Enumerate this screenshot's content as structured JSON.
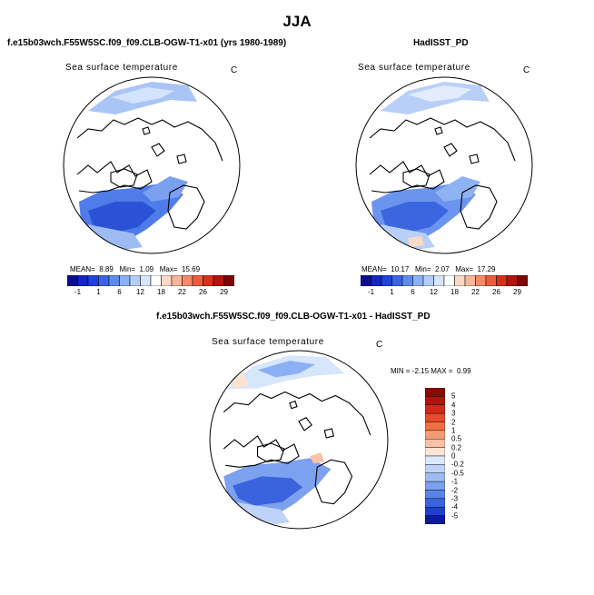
{
  "figure": {
    "title": "JJA",
    "panels": [
      {
        "title": "f.e15b03wch.F55W5SC.f09_f09.CLB-OGW-T1-x01 (yrs 1980-1989)",
        "variable": "Sea surface temperature",
        "unit": "C",
        "stats": {
          "mean_label": "MEAN=",
          "mean": "8.89",
          "min_label": "Min=",
          "min": "1.09",
          "max_label": "Max=",
          "max": "15.69"
        }
      },
      {
        "title": "HadISST_PD",
        "variable": "Sea surface temperature",
        "unit": "C",
        "stats": {
          "mean_label": "MEAN=",
          "mean": "10.17",
          "min_label": "Min=",
          "min": "2.07",
          "max_label": "Max=",
          "max": "17.29"
        }
      },
      {
        "title": "f.e15b03wch.F55W5SC.f09_f09.CLB-OGW-T1-x01 - HadISST_PD",
        "variable": "Sea surface temperature",
        "unit": "C",
        "stats": {
          "min_label": "MIN =",
          "min": "-2.15",
          "max_label": "MAX =",
          "max": "0.99"
        }
      }
    ],
    "abs_colorbar": {
      "labels": [
        "-1",
        "1",
        "6",
        "12",
        "18",
        "22",
        "26",
        "29"
      ],
      "colors": [
        "#0b0f8f",
        "#1524c4",
        "#2041db",
        "#3b64e6",
        "#5f8bef",
        "#8bb0f6",
        "#b3cdf9",
        "#d6e6fb",
        "#ffffff",
        "#fbd9c6",
        "#f8b59a",
        "#f4896a",
        "#ee5a3f",
        "#db2f1e",
        "#b3140e",
        "#7c0606"
      ]
    },
    "diff_colorbar": {
      "labels": [
        "5",
        "4",
        "3",
        "2",
        "1",
        "0.5",
        "0.2",
        "0",
        "-0.2",
        "-0.5",
        "-1",
        "-2",
        "-3",
        "-4",
        "-5"
      ],
      "colors": [
        "#8a0a05",
        "#b3130d",
        "#d12a1a",
        "#e84a2c",
        "#f2703f",
        "#f59a74",
        "#fac2a8",
        "#fde3d4",
        "#dce8fb",
        "#bfd3f8",
        "#9ebbf4",
        "#7ca1ef",
        "#5a83e8",
        "#3a63de",
        "#1f40cc",
        "#0c1a9b"
      ]
    },
    "chart_data": {
      "type": "heatmap",
      "projection": "north polar stereographic",
      "season": "JJA",
      "variable": "Sea surface temperature (C)",
      "abs_levels": [
        -1,
        1,
        6,
        12,
        18,
        22,
        26,
        29
      ],
      "diff_levels": [
        -5,
        -4,
        -3,
        -2,
        -1,
        -0.5,
        -0.2,
        0,
        0.2,
        0.5,
        1,
        2,
        3,
        4,
        5
      ],
      "summary": [
        {
          "panel": "model",
          "mean": 8.89,
          "min": 1.09,
          "max": 15.69
        },
        {
          "panel": "HadISST_PD",
          "mean": 10.17,
          "min": 2.07,
          "max": 17.29
        },
        {
          "panel": "model - HadISST_PD",
          "min": -2.15,
          "max": 0.99
        }
      ]
    }
  }
}
